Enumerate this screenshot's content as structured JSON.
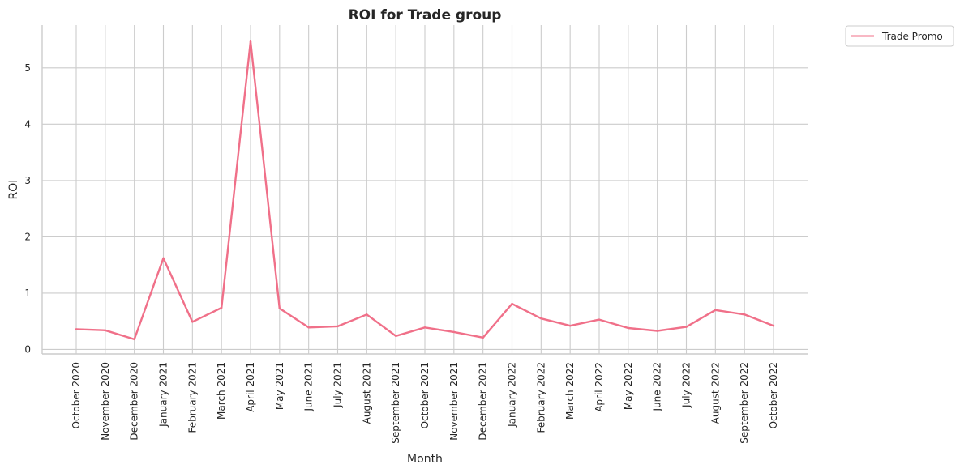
{
  "chart_data": {
    "type": "line",
    "title": "ROI for Trade group",
    "xlabel": "Month",
    "ylabel": "ROI",
    "categories": [
      "October 2020",
      "November 2020",
      "December 2020",
      "January 2021",
      "February 2021",
      "March 2021",
      "April 2021",
      "May 2021",
      "June 2021",
      "July 2021",
      "August 2021",
      "September 2021",
      "October 2021",
      "November 2021",
      "December 2021",
      "January 2022",
      "February 2022",
      "March 2022",
      "April 2022",
      "May 2022",
      "June 2022",
      "July 2022",
      "August 2022",
      "September 2022",
      "October 2022"
    ],
    "series": [
      {
        "name": "Trade Promo",
        "color": "#f07089",
        "values": [
          0.36,
          0.34,
          0.18,
          1.62,
          0.49,
          0.74,
          5.47,
          0.73,
          0.39,
          0.41,
          0.62,
          0.24,
          0.39,
          0.31,
          0.21,
          0.81,
          0.55,
          0.42,
          0.53,
          0.38,
          0.33,
          0.4,
          0.7,
          0.62,
          0.42
        ]
      }
    ],
    "yticks": [
      0,
      1,
      2,
      3,
      4,
      5
    ],
    "ylim": [
      -0.08,
      5.76
    ],
    "grid": true,
    "legend_position": "outside-top-right"
  }
}
